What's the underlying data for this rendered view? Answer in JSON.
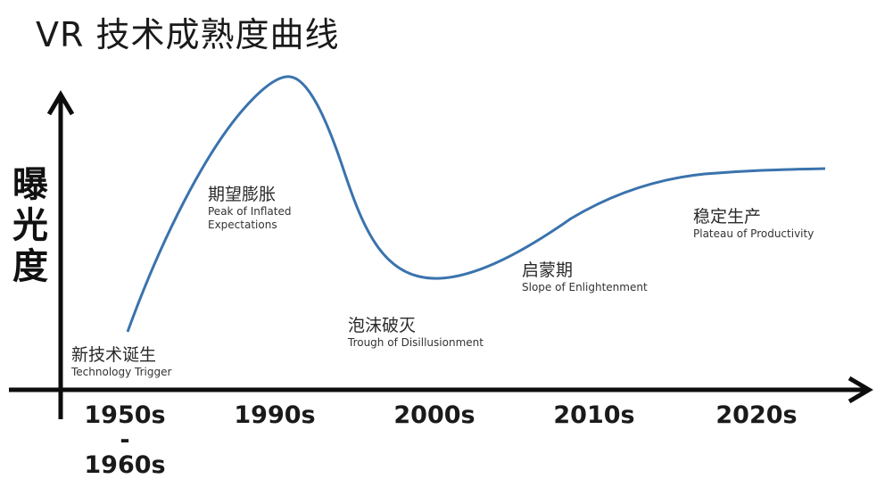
{
  "title": "VR 技术成熟度曲线",
  "y_axis_label": [
    "曝",
    "光",
    "度"
  ],
  "x_ticks": [
    "1950s\n-\n1960s",
    "1990s",
    "2000s",
    "2010s",
    "2020s"
  ],
  "phases": [
    {
      "cn": "新技术诞生",
      "en": [
        "Technology Trigger"
      ]
    },
    {
      "cn": "期望膨胀",
      "en": [
        "Peak of Inflated",
        "Expectations"
      ]
    },
    {
      "cn": "泡沫破灭",
      "en": [
        "Trough of Disillusionment"
      ]
    },
    {
      "cn": "启蒙期",
      "en": [
        "Slope of Enlightenment"
      ]
    },
    {
      "cn": "稳定生产",
      "en": [
        "Plateau of Productivity"
      ]
    }
  ],
  "colors": {
    "curve": "#3a73ad",
    "axis": "#0d0d0d"
  }
}
